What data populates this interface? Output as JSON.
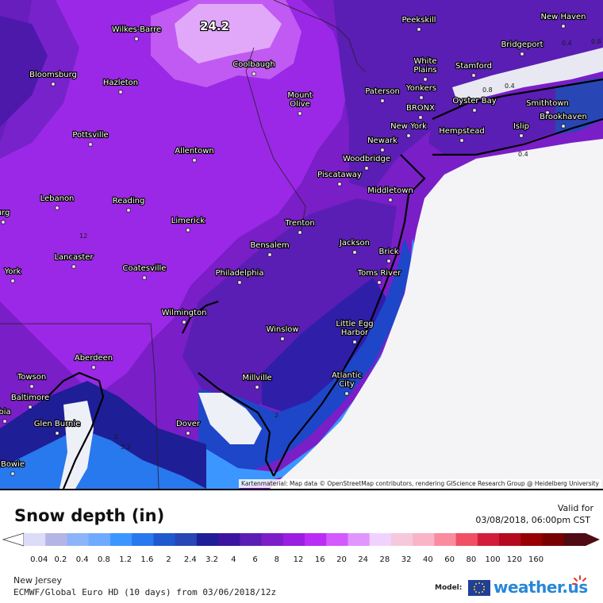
{
  "map": {
    "max_label": "24.2",
    "cities": [
      {
        "name": "Wilkes-Barre"
      },
      {
        "name": "Peekskill"
      },
      {
        "name": "New Haven"
      },
      {
        "name": "Coolbaugh"
      },
      {
        "name": "Bridgeport"
      },
      {
        "name": "Bloomsburg"
      },
      {
        "name": "Hazleton"
      },
      {
        "name": "White\nPlains"
      },
      {
        "name": "Stamford"
      },
      {
        "name": "Paterson"
      },
      {
        "name": "Yonkers"
      },
      {
        "name": "Mount\nOlive"
      },
      {
        "name": "BRONX"
      },
      {
        "name": "Oyster Bay"
      },
      {
        "name": "Smithtown"
      },
      {
        "name": "New York"
      },
      {
        "name": "Brookhaven"
      },
      {
        "name": "Pottsville"
      },
      {
        "name": "Hempstead"
      },
      {
        "name": "Islip"
      },
      {
        "name": "Newark"
      },
      {
        "name": "Allentown"
      },
      {
        "name": "Woodbridge"
      },
      {
        "name": "Piscataway"
      },
      {
        "name": "Middletown"
      },
      {
        "name": "Lebanon"
      },
      {
        "name": "Reading"
      },
      {
        "name": "Limerick"
      },
      {
        "name": "Trenton"
      },
      {
        "name": "Jackson"
      },
      {
        "name": "Bensalem"
      },
      {
        "name": "Brick"
      },
      {
        "name": "Lancaster"
      },
      {
        "name": "Coatesville"
      },
      {
        "name": "Philadelphia"
      },
      {
        "name": "Toms River"
      },
      {
        "name": "York"
      },
      {
        "name": "Wilmington"
      },
      {
        "name": "Winslow"
      },
      {
        "name": "Little Egg\nHarbor"
      },
      {
        "name": "Aberdeen"
      },
      {
        "name": "Towson"
      },
      {
        "name": "Millville"
      },
      {
        "name": "Atlantic\nCity"
      },
      {
        "name": "Baltimore"
      },
      {
        "name": "Glen Burnie"
      },
      {
        "name": "Dover"
      },
      {
        "name": "Bowie"
      },
      {
        "name": "urg"
      },
      {
        "name": "bia"
      }
    ],
    "contour_labels": [
      "0.4",
      "0.8",
      "0.8",
      "0.4",
      "0.4",
      "12",
      "2",
      "3.2",
      "2"
    ],
    "attribution": "Kartenmaterial: Map data © OpenStreetMap contributors, rendering GIScience Research Group @ Heidelberg University"
  },
  "legend": {
    "title": "Snow depth (in)",
    "valid_label": "Valid for",
    "valid_time": "03/08/2018, 06:00pm CST",
    "ticks": [
      "0.04",
      "0.2",
      "0.4",
      "0.8",
      "1.2",
      "1.6",
      "2",
      "2.4",
      "3.2",
      "4",
      "6",
      "8",
      "12",
      "16",
      "20",
      "24",
      "28",
      "32",
      "40",
      "60",
      "80",
      "100",
      "120",
      "160"
    ],
    "colors": [
      "#dcdcf8",
      "#b4b4e6",
      "#8cb4fa",
      "#6eaaff",
      "#3c96ff",
      "#2878ee",
      "#1e5acd",
      "#2846b4",
      "#1e1e96",
      "#3c14a0",
      "#5a1eb4",
      "#7d1ec8",
      "#9b1ee1",
      "#b92df5",
      "#d25aff",
      "#e196ff",
      "#f0d2ff",
      "#f5c8dc",
      "#fab4c8",
      "#fa8ca0",
      "#f05064",
      "#d21e3c",
      "#b40a1e",
      "#960000",
      "#780000",
      "#500a14"
    ]
  },
  "footer": {
    "region": "New Jersey",
    "model_run": "ECMWF/Global Euro HD (10 days) from 03/06/2018/12z",
    "model_label": "Model:",
    "brand": "weather.us",
    "logo_icon": "sun-icon",
    "flag_icon": "eu-flag-icon"
  }
}
